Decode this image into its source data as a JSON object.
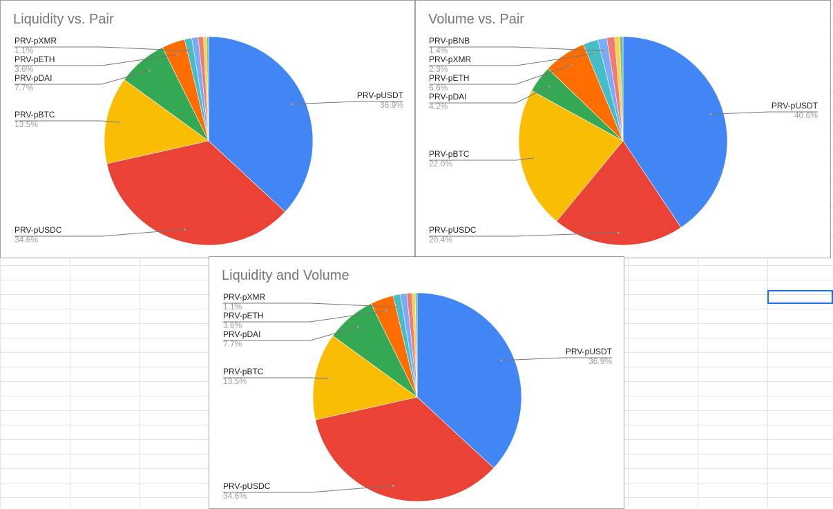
{
  "spreadsheet": {
    "selected_cell_color": "#1a73e8"
  },
  "chart_data": [
    {
      "type": "pie",
      "title": "Liquidity vs. Pair",
      "slices": [
        {
          "label": "PRV-pUSDT",
          "value": 36.9,
          "value_label": "36.9%",
          "color": "#4285f4"
        },
        {
          "label": "PRV-pUSDC",
          "value": 34.6,
          "value_label": "34.6%",
          "color": "#ea4335"
        },
        {
          "label": "PRV-pBTC",
          "value": 13.5,
          "value_label": "13.5%",
          "color": "#fbbc04"
        },
        {
          "label": "PRV-pDAI",
          "value": 7.7,
          "value_label": "7.7%",
          "color": "#34a853"
        },
        {
          "label": "PRV-pETH",
          "value": 3.6,
          "value_label": "3.6%",
          "color": "#ff6d01"
        },
        {
          "label": "PRV-pXMR",
          "value": 1.1,
          "value_label": "1.1%",
          "color": "#46bdc6"
        },
        {
          "label": "",
          "value": 1.0,
          "value_label": "",
          "color": "#7baaf7"
        },
        {
          "label": "",
          "value": 0.8,
          "value_label": "",
          "color": "#f07b72"
        },
        {
          "label": "",
          "value": 0.5,
          "value_label": "",
          "color": "#fcd04f"
        },
        {
          "label": "",
          "value": 0.3,
          "value_label": "",
          "color": "#71c287"
        }
      ]
    },
    {
      "type": "pie",
      "title": "Volume vs. Pair",
      "slices": [
        {
          "label": "PRV-pUSDT",
          "value": 40.6,
          "value_label": "40.6%",
          "color": "#4285f4"
        },
        {
          "label": "PRV-pUSDC",
          "value": 20.4,
          "value_label": "20.4%",
          "color": "#ea4335"
        },
        {
          "label": "PRV-pBTC",
          "value": 22.0,
          "value_label": "22.0%",
          "color": "#fbbc04"
        },
        {
          "label": "PRV-pDAI",
          "value": 4.2,
          "value_label": "4.2%",
          "color": "#34a853"
        },
        {
          "label": "PRV-pETH",
          "value": 6.6,
          "value_label": "6.6%",
          "color": "#ff6d01"
        },
        {
          "label": "PRV-pXMR",
          "value": 2.3,
          "value_label": "2.3%",
          "color": "#46bdc6"
        },
        {
          "label": "PRV-pBNB",
          "value": 1.4,
          "value_label": "1.4%",
          "color": "#7baaf7"
        },
        {
          "label": "",
          "value": 1.2,
          "value_label": "",
          "color": "#f07b72"
        },
        {
          "label": "",
          "value": 0.8,
          "value_label": "",
          "color": "#fcd04f"
        },
        {
          "label": "",
          "value": 0.5,
          "value_label": "",
          "color": "#71c287"
        }
      ]
    },
    {
      "type": "pie",
      "title": "Liquidity and Volume",
      "slices": [
        {
          "label": "PRV-pUSDT",
          "value": 36.9,
          "value_label": "36.9%",
          "color": "#4285f4"
        },
        {
          "label": "PRV-pUSDC",
          "value": 34.6,
          "value_label": "34.6%",
          "color": "#ea4335"
        },
        {
          "label": "PRV-pBTC",
          "value": 13.5,
          "value_label": "13.5%",
          "color": "#fbbc04"
        },
        {
          "label": "PRV-pDAI",
          "value": 7.7,
          "value_label": "7.7%",
          "color": "#34a853"
        },
        {
          "label": "PRV-pETH",
          "value": 3.6,
          "value_label": "3.6%",
          "color": "#ff6d01"
        },
        {
          "label": "PRV-pXMR",
          "value": 1.1,
          "value_label": "1.1%",
          "color": "#46bdc6"
        },
        {
          "label": "",
          "value": 1.0,
          "value_label": "",
          "color": "#7baaf7"
        },
        {
          "label": "",
          "value": 0.8,
          "value_label": "",
          "color": "#f07b72"
        },
        {
          "label": "",
          "value": 0.5,
          "value_label": "",
          "color": "#fcd04f"
        },
        {
          "label": "",
          "value": 0.3,
          "value_label": "",
          "color": "#71c287"
        }
      ]
    }
  ]
}
